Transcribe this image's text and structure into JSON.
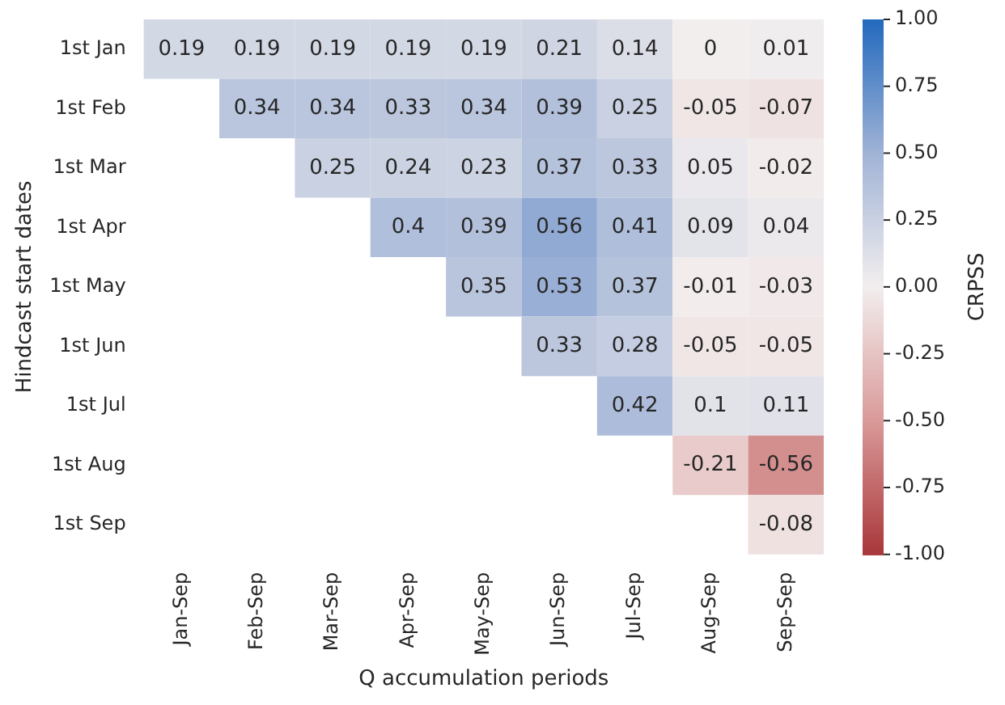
{
  "chart_data": {
    "type": "heatmap",
    "xlabel": "Q accumulation periods",
    "ylabel": "Hindcast start dates",
    "clabel": "CRPSS",
    "categories": [
      "Jan-Sep",
      "Feb-Sep",
      "Mar-Sep",
      "Apr-Sep",
      "May-Sep",
      "Jun-Sep",
      "Jul-Sep",
      "Aug-Sep",
      "Sep-Sep"
    ],
    "y_categories": [
      "1st Jan",
      "1st Feb",
      "1st Mar",
      "1st Apr",
      "1st May",
      "1st Jun",
      "1st Jul",
      "1st Aug",
      "1st Sep"
    ],
    "cells": [
      [
        0.19,
        0.19,
        0.19,
        0.19,
        0.19,
        0.21,
        0.14,
        0,
        0.01
      ],
      [
        null,
        0.34,
        0.34,
        0.33,
        0.34,
        0.39,
        0.25,
        -0.05,
        -0.07
      ],
      [
        null,
        null,
        0.25,
        0.24,
        0.23,
        0.37,
        0.33,
        0.05,
        -0.02
      ],
      [
        null,
        null,
        null,
        0.4,
        0.39,
        0.56,
        0.41,
        0.09,
        0.04
      ],
      [
        null,
        null,
        null,
        null,
        0.35,
        0.53,
        0.37,
        -0.01,
        -0.03
      ],
      [
        null,
        null,
        null,
        null,
        null,
        0.33,
        0.28,
        -0.05,
        -0.05
      ],
      [
        null,
        null,
        null,
        null,
        null,
        null,
        0.42,
        0.1,
        0.11
      ],
      [
        null,
        null,
        null,
        null,
        null,
        null,
        null,
        -0.21,
        -0.56
      ],
      [
        null,
        null,
        null,
        null,
        null,
        null,
        null,
        null,
        -0.08
      ]
    ],
    "clim": [
      -1,
      1
    ],
    "cticks": [
      {
        "value": 1,
        "label": "1.00"
      },
      {
        "value": 0.75,
        "label": "0.75"
      },
      {
        "value": 0.5,
        "label": "0.50"
      },
      {
        "value": 0.25,
        "label": "0.25"
      },
      {
        "value": 0,
        "label": "0.00"
      },
      {
        "value": -0.25,
        "label": "-0.25"
      },
      {
        "value": -0.5,
        "label": "-0.50"
      },
      {
        "value": -0.75,
        "label": "-0.75"
      },
      {
        "value": -1,
        "label": "-1.00"
      }
    ],
    "data_labels": true
  }
}
